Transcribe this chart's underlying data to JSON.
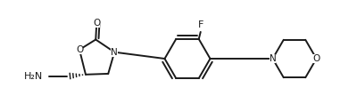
{
  "background_color": "#ffffff",
  "line_color": "#1a1a1a",
  "line_width": 1.4,
  "font_size_atoms": 7.5,
  "fig_width": 4.0,
  "fig_height": 1.26,
  "xlim": [
    0,
    4.0
  ],
  "ylim": [
    0,
    1.26
  ]
}
